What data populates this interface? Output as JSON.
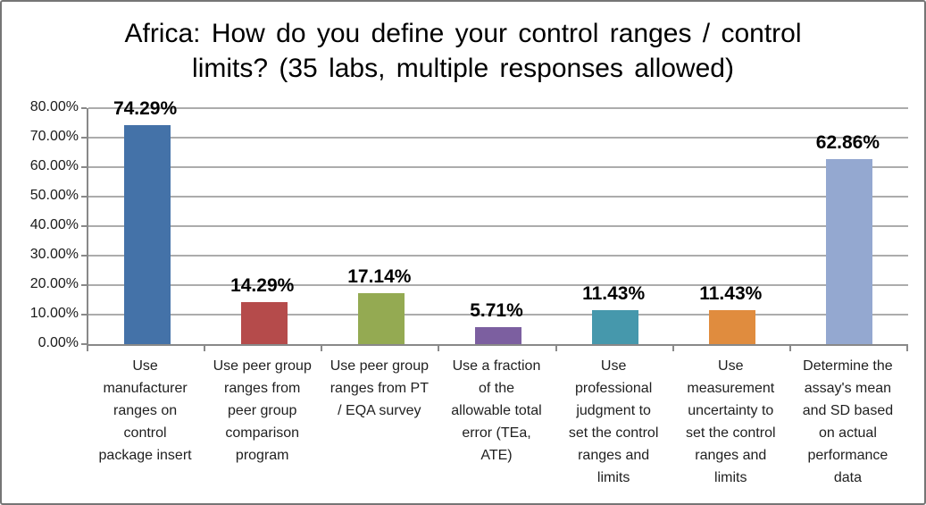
{
  "window": {
    "background": "#ffffff",
    "border_color": "#757575"
  },
  "chart_data": {
    "type": "bar",
    "title": "Africa: How do you define your control ranges / control\nlimits? (35 labs, multiple responses allowed)",
    "categories": [
      "Use manufacturer ranges on control package insert",
      "Use peer group ranges from peer group comparison program",
      "Use peer group ranges from PT / EQA survey",
      "Use a fraction of the allowable total error (TEa, ATE)",
      "Use professional judgment to set the control ranges and limits",
      "Use measurement uncertainty to set the control ranges and limits",
      "Determine the assay's mean and SD based on actual performance data"
    ],
    "wrapped_labels": [
      "Use\nmanufacturer\nranges on\ncontrol\npackage insert",
      "Use peer group\nranges from\npeer group\ncomparison\nprogram",
      "Use peer group\nranges from PT\n/ EQA survey",
      "Use a fraction\nof the\nallowable total\nerror (TEa,\nATE)",
      "Use\nprofessional\njudgment to\nset the control\nranges and\nlimits",
      "Use\nmeasurement\nuncertainty to\nset the control\nranges and\nlimits",
      "Determine the\nassay's mean\nand SD based\non actual\nperformance\ndata"
    ],
    "values": [
      74.29,
      14.29,
      17.14,
      5.71,
      11.43,
      11.43,
      62.86
    ],
    "value_labels": [
      "74.29%",
      "14.29%",
      "17.14%",
      "5.71%",
      "11.43%",
      "11.43%",
      "62.86%"
    ],
    "colors": [
      "#4472a8",
      "#b54b4b",
      "#94aa52",
      "#7c5fa0",
      "#4698ac",
      "#e08c3e",
      "#94a8d0"
    ],
    "ylim": [
      0,
      80
    ],
    "ytick_step": 10,
    "ytick_labels": [
      "0.00%",
      "10.00%",
      "20.00%",
      "30.00%",
      "40.00%",
      "50.00%",
      "60.00%",
      "70.00%",
      "80.00%"
    ],
    "grid": true,
    "legend": "none",
    "gridline_color": "#acacac",
    "axis_color": "#898989",
    "xlabel": "",
    "ylabel": ""
  }
}
